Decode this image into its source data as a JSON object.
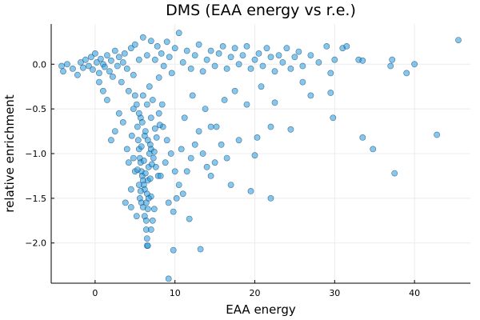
{
  "chart_data": {
    "type": "scatter",
    "title": "DMS (EAA energy vs r.e.)",
    "xlabel": "EAA energy",
    "ylabel": "relative enrichment",
    "xlim": [
      -5.5,
      47
    ],
    "ylim": [
      -2.45,
      0.45
    ],
    "xticks": [
      0,
      10,
      20,
      30,
      40
    ],
    "yticks": [
      0.0,
      -0.5,
      -1.0,
      -1.5,
      -2.0
    ],
    "xtick_labels": [
      "0",
      "10",
      "20",
      "30",
      "40"
    ],
    "ytick_labels": [
      "0.0",
      "−0.5",
      "−1.0",
      "−1.5",
      "−2.0"
    ],
    "grid": true,
    "legend": "none",
    "marker_color": "#1f9be0",
    "series": [
      {
        "points": [
          [
            -4.2,
            -0.02
          ],
          [
            -4.0,
            -0.08
          ],
          [
            -3.5,
            0.0
          ],
          [
            -2.8,
            -0.05
          ],
          [
            -2.2,
            -0.12
          ],
          [
            -1.8,
            0.02
          ],
          [
            -1.5,
            -0.04
          ],
          [
            -1.2,
            0.05
          ],
          [
            -0.8,
            -0.02
          ],
          [
            -0.5,
            0.08
          ],
          [
            -0.3,
            -0.06
          ],
          [
            0.0,
            0.12
          ],
          [
            0.2,
            0.02
          ],
          [
            0.5,
            -0.1
          ],
          [
            0.7,
            0.06
          ],
          [
            1.0,
            0.0
          ],
          [
            1.2,
            -0.03
          ],
          [
            1.5,
            0.1
          ],
          [
            1.8,
            -0.08
          ],
          [
            2.0,
            0.04
          ],
          [
            2.2,
            -0.14
          ],
          [
            2.5,
            0.15
          ],
          [
            2.8,
            -0.02
          ],
          [
            3.0,
            0.08
          ],
          [
            3.3,
            -0.2
          ],
          [
            3.5,
            0.02
          ],
          [
            3.7,
            0.12
          ],
          [
            4.0,
            -0.05
          ],
          [
            4.2,
            -0.3
          ],
          [
            4.5,
            0.18
          ],
          [
            4.8,
            -0.12
          ],
          [
            5.0,
            0.22
          ],
          [
            5.2,
            -0.45
          ],
          [
            5.5,
            0.05
          ],
          [
            5.7,
            -0.6
          ],
          [
            6.0,
            0.3
          ],
          [
            6.2,
            -0.8
          ],
          [
            6.5,
            0.1
          ],
          [
            6.8,
            -0.25
          ],
          [
            7.0,
            0.26
          ],
          [
            7.2,
            -0.4
          ],
          [
            7.5,
            0.05
          ],
          [
            7.8,
            0.2
          ],
          [
            8.0,
            -0.15
          ],
          [
            8.3,
            0.12
          ],
          [
            8.6,
            -0.02
          ],
          [
            9.0,
            0.25
          ],
          [
            9.3,
            0.08
          ],
          [
            9.6,
            -0.1
          ],
          [
            10.0,
            0.18
          ],
          [
            10.5,
            0.35
          ],
          [
            11.0,
            0.02
          ],
          [
            11.5,
            0.15
          ],
          [
            12.0,
            -0.05
          ],
          [
            12.5,
            0.1
          ],
          [
            13.0,
            0.22
          ],
          [
            13.5,
            -0.08
          ],
          [
            14.0,
            0.05
          ],
          [
            14.5,
            0.15
          ],
          [
            15.0,
            -0.02
          ],
          [
            15.5,
            0.12
          ],
          [
            16.0,
            0.2
          ],
          [
            16.5,
            -0.05
          ],
          [
            17.0,
            0.08
          ],
          [
            17.5,
            0.18
          ],
          [
            18.0,
            0.0
          ],
          [
            18.5,
            0.1
          ],
          [
            19.0,
            0.2
          ],
          [
            19.5,
            -0.05
          ],
          [
            20.0,
            0.05
          ],
          [
            20.5,
            0.12
          ],
          [
            21.0,
            -0.02
          ],
          [
            21.5,
            0.18
          ],
          [
            22.0,
            0.08
          ],
          [
            22.5,
            -0.08
          ],
          [
            23.0,
            0.1
          ],
          [
            23.5,
            0.02
          ],
          [
            24.0,
            0.18
          ],
          [
            24.5,
            -0.05
          ],
          [
            25.0,
            0.08
          ],
          [
            25.5,
            0.14
          ],
          [
            26.0,
            -0.02
          ],
          [
            27.0,
            0.1
          ],
          [
            28.0,
            0.02
          ],
          [
            29.0,
            0.2
          ],
          [
            29.5,
            -0.1
          ],
          [
            30.0,
            0.05
          ],
          [
            31.0,
            0.18
          ],
          [
            31.5,
            0.2
          ],
          [
            33.0,
            0.05
          ],
          [
            33.5,
            0.04
          ],
          [
            37.0,
            -0.02
          ],
          [
            37.2,
            0.05
          ],
          [
            39.0,
            -0.1
          ],
          [
            40.0,
            0.0
          ],
          [
            45.5,
            0.27
          ],
          [
            5.3,
            -0.7
          ],
          [
            5.4,
            -0.85
          ],
          [
            5.5,
            -0.95
          ],
          [
            5.6,
            -1.05
          ],
          [
            5.7,
            -1.1
          ],
          [
            5.8,
            -1.2
          ],
          [
            5.9,
            -1.25
          ],
          [
            6.0,
            -1.3
          ],
          [
            6.1,
            -1.35
          ],
          [
            6.2,
            -1.4
          ],
          [
            5.6,
            -1.5
          ],
          [
            5.8,
            -1.55
          ],
          [
            6.0,
            -1.6
          ],
          [
            6.2,
            -1.7
          ],
          [
            6.4,
            -1.75
          ],
          [
            6.5,
            -1.45
          ],
          [
            6.6,
            -1.3
          ],
          [
            6.7,
            -1.15
          ],
          [
            6.8,
            -1.0
          ],
          [
            6.9,
            -0.9
          ],
          [
            5.5,
            -0.55
          ],
          [
            5.9,
            -0.65
          ],
          [
            6.3,
            -0.75
          ],
          [
            6.6,
            -0.85
          ],
          [
            7.0,
            -0.95
          ],
          [
            7.3,
            -1.05
          ],
          [
            7.6,
            -1.15
          ],
          [
            7.9,
            -1.25
          ],
          [
            6.4,
            -1.55
          ],
          [
            6.6,
            -1.62
          ],
          [
            6.4,
            -1.85
          ],
          [
            6.5,
            -1.95
          ],
          [
            6.5,
            -2.03
          ],
          [
            6.6,
            -2.03
          ],
          [
            7.2,
            -1.75
          ],
          [
            7.0,
            -1.85
          ],
          [
            5.0,
            -1.2
          ],
          [
            4.8,
            -1.05
          ],
          [
            4.5,
            -1.4
          ],
          [
            4.2,
            -1.1
          ],
          [
            3.8,
            -1.55
          ],
          [
            4.0,
            -0.95
          ],
          [
            4.5,
            -1.6
          ],
          [
            5.2,
            -1.7
          ],
          [
            8.0,
            -0.55
          ],
          [
            8.5,
            -0.7
          ],
          [
            9.0,
            -0.85
          ],
          [
            9.5,
            -1.0
          ],
          [
            10.0,
            -1.2
          ],
          [
            10.5,
            -1.35
          ],
          [
            11.0,
            -1.45
          ],
          [
            9.2,
            -1.55
          ],
          [
            9.8,
            -1.65
          ],
          [
            10.2,
            -1.5
          ],
          [
            11.5,
            -1.2
          ],
          [
            12.0,
            -1.05
          ],
          [
            12.5,
            -0.9
          ],
          [
            13.0,
            -0.75
          ],
          [
            13.5,
            -1.0
          ],
          [
            14.0,
            -1.15
          ],
          [
            14.5,
            -1.25
          ],
          [
            15.0,
            -1.1
          ],
          [
            14.5,
            -0.7
          ],
          [
            15.2,
            -0.7
          ],
          [
            15.8,
            -0.9
          ],
          [
            16.5,
            -1.05
          ],
          [
            17.0,
            -1.35
          ],
          [
            18.0,
            -0.85
          ],
          [
            19.5,
            -1.42
          ],
          [
            20.0,
            -1.02
          ],
          [
            20.3,
            -0.82
          ],
          [
            22.0,
            -0.7
          ],
          [
            22.0,
            -1.5
          ],
          [
            24.5,
            -0.73
          ],
          [
            22.5,
            -0.43
          ],
          [
            26.0,
            -0.2
          ],
          [
            27.0,
            -0.35
          ],
          [
            29.5,
            -0.32
          ],
          [
            29.8,
            -0.6
          ],
          [
            33.5,
            -0.82
          ],
          [
            34.8,
            -0.95
          ],
          [
            37.5,
            -1.22
          ],
          [
            42.8,
            -0.79
          ],
          [
            11.8,
            -1.73
          ],
          [
            9.2,
            -2.4
          ],
          [
            9.8,
            -2.08
          ],
          [
            13.2,
            -2.07
          ],
          [
            7.0,
            -1.48
          ],
          [
            7.4,
            -1.62
          ],
          [
            8.2,
            -1.25
          ],
          [
            8.8,
            -1.1
          ],
          [
            10.8,
            -0.95
          ],
          [
            11.2,
            -0.6
          ],
          [
            12.2,
            -0.35
          ],
          [
            13.8,
            -0.5
          ],
          [
            16.2,
            -0.4
          ],
          [
            17.5,
            -0.3
          ],
          [
            19.0,
            -0.45
          ],
          [
            20.8,
            -0.25
          ],
          [
            3.0,
            -0.55
          ],
          [
            2.5,
            -0.75
          ],
          [
            2.0,
            -0.85
          ],
          [
            1.5,
            -0.4
          ],
          [
            1.0,
            -0.3
          ],
          [
            0.5,
            -0.2
          ],
          [
            3.5,
            -0.65
          ],
          [
            4.6,
            -0.8
          ],
          [
            6.1,
            -1.08
          ],
          [
            5.8,
            -0.92
          ],
          [
            6.3,
            -1.22
          ],
          [
            6.7,
            -1.5
          ],
          [
            5.5,
            -1.35
          ],
          [
            5.3,
            -1.18
          ],
          [
            5.7,
            -1.42
          ],
          [
            6.9,
            -1.28
          ],
          [
            7.1,
            -1.12
          ],
          [
            7.4,
            -0.98
          ],
          [
            7.7,
            -0.82
          ],
          [
            8.1,
            -0.68
          ],
          [
            8.4,
            -0.45
          ],
          [
            6.0,
            -0.35
          ],
          [
            6.5,
            -0.45
          ],
          [
            7.0,
            -0.6
          ],
          [
            7.5,
            -0.72
          ],
          [
            5.0,
            -0.35
          ],
          [
            4.8,
            -0.5
          ]
        ]
      }
    ]
  }
}
